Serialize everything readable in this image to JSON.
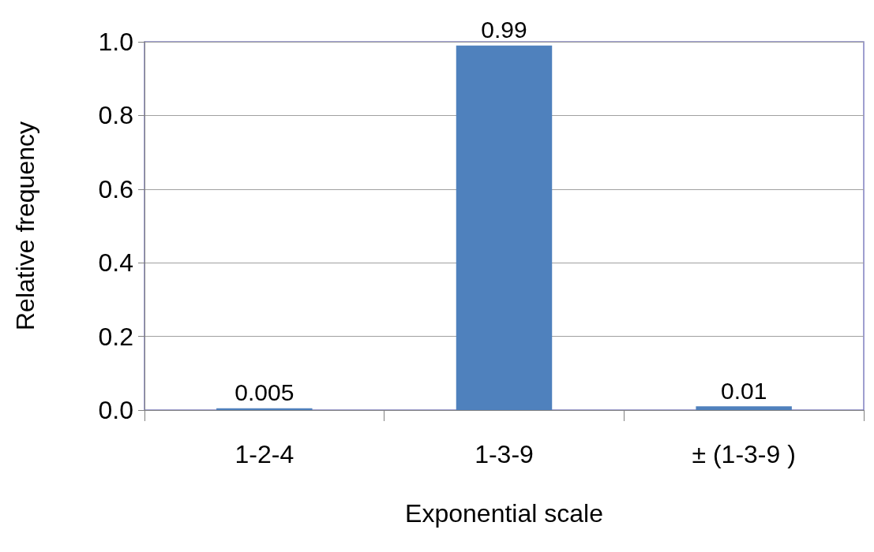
{
  "chart_data": {
    "type": "bar",
    "xlabel": "Exponential scale",
    "ylabel": "Relative frequency",
    "categories": [
      "1-2-4",
      "1-3-9",
      "± (1-3-9 )"
    ],
    "values": [
      0.005,
      0.99,
      0.01
    ],
    "color": "#4f81bd",
    "ylim": [
      0,
      1.0
    ],
    "yticks": [
      {
        "value": 0,
        "label": "0.0"
      },
      {
        "value": 0.2,
        "label": "0.2"
      },
      {
        "value": 0.4,
        "label": "0.4"
      },
      {
        "value": 0.6,
        "label": "0.6"
      },
      {
        "value": 0.8,
        "label": "0.8"
      },
      {
        "value": 1.0,
        "label": "1.0"
      }
    ],
    "grid": "y",
    "data_labels": true
  }
}
